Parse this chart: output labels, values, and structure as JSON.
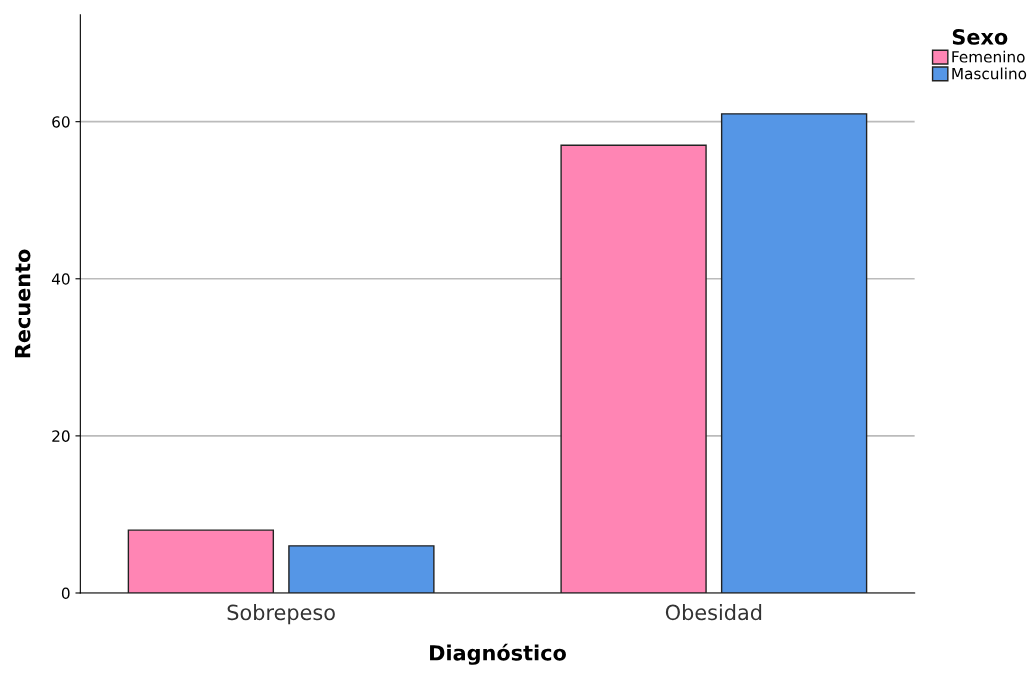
{
  "chart_data": {
    "type": "bar",
    "xlabel": "Diagnóstico",
    "ylabel": "Recuento",
    "legend_title": "Sexo",
    "categories": [
      "Sobrepeso",
      "Obesidad"
    ],
    "series": [
      {
        "name": "Femenino",
        "color": "#ff85b4",
        "values": [
          8,
          57
        ]
      },
      {
        "name": "Masculino",
        "color": "#5596e6",
        "values": [
          6,
          61
        ]
      }
    ],
    "ylim": [
      0,
      73.6
    ],
    "yticks": [
      0,
      20,
      40,
      60
    ],
    "grid": "y",
    "legend": "top right"
  }
}
